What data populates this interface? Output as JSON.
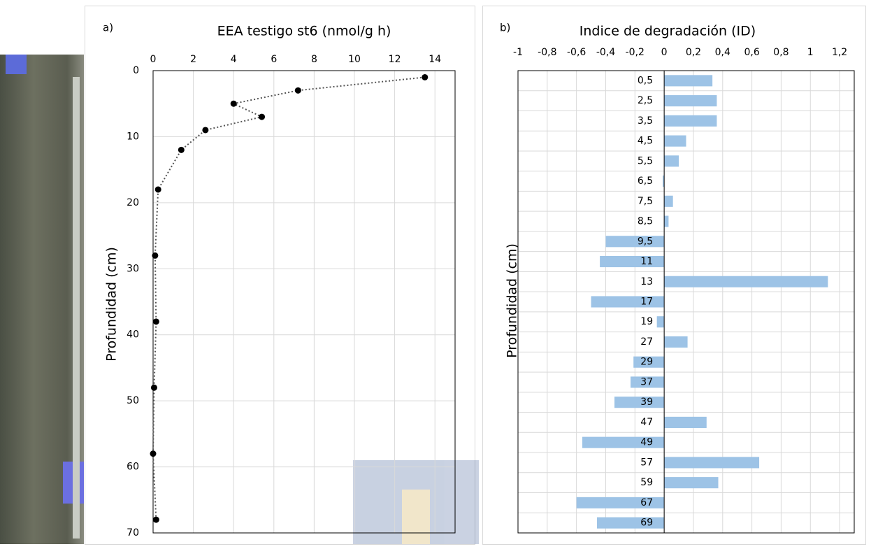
{
  "chart_data": [
    {
      "type": "scatter",
      "panel_label": "a)",
      "title": "EEA testigo st6 (nmol/g h)",
      "y_label": "Profundidad (cm)",
      "x": [
        13.5,
        7.2,
        4.0,
        5.4,
        2.6,
        1.4,
        0.25,
        0.1,
        0.15,
        0.05,
        0.0,
        0.15
      ],
      "y": [
        1,
        3,
        5,
        7,
        9,
        12,
        18,
        28,
        38,
        48,
        58,
        68
      ],
      "color": "#000000",
      "line_style": "dotted",
      "xlim": [
        0,
        15
      ],
      "xticks": [
        0,
        2,
        4,
        6,
        8,
        10,
        12,
        14
      ],
      "ylim": [
        0,
        70
      ],
      "yticks": [
        0,
        10,
        20,
        30,
        40,
        50,
        60,
        70
      ],
      "y_inverted": true,
      "grid": true
    },
    {
      "type": "barh",
      "panel_label": "b)",
      "title": "Indice de degradación (ID)",
      "y_label": "Profundidad (cm)",
      "categories": [
        "0,5",
        "2,5",
        "3,5",
        "4,5",
        "5,5",
        "6,5",
        "7,5",
        "8,5",
        "9,5",
        "11",
        "13",
        "17",
        "19",
        "27",
        "29",
        "37",
        "39",
        "47",
        "49",
        "57",
        "59",
        "67",
        "69"
      ],
      "values": [
        0.33,
        0.36,
        0.36,
        0.15,
        0.1,
        -0.01,
        0.06,
        0.03,
        -0.4,
        -0.44,
        1.12,
        -0.5,
        -0.05,
        0.16,
        -0.21,
        -0.23,
        -0.34,
        0.29,
        -0.56,
        0.65,
        0.37,
        -0.6,
        -0.46
      ],
      "color": "#9dc3e6",
      "xlim": [
        -1,
        1.3
      ],
      "xticks": [
        -1,
        {
          "value": -0.8,
          "label": "-0,8"
        },
        {
          "value": -0.6,
          "label": "-0,6"
        },
        {
          "value": -0.4,
          "label": "-0,4"
        },
        {
          "value": -0.2,
          "label": "-0,2"
        },
        0,
        {
          "value": 0.2,
          "label": "0,2"
        },
        {
          "value": 0.4,
          "label": "0,4"
        },
        {
          "value": 0.6,
          "label": "0,6"
        },
        {
          "value": 0.8,
          "label": "0,8"
        },
        1,
        {
          "value": 1.2,
          "label": "1,2"
        }
      ],
      "grid": true
    }
  ]
}
